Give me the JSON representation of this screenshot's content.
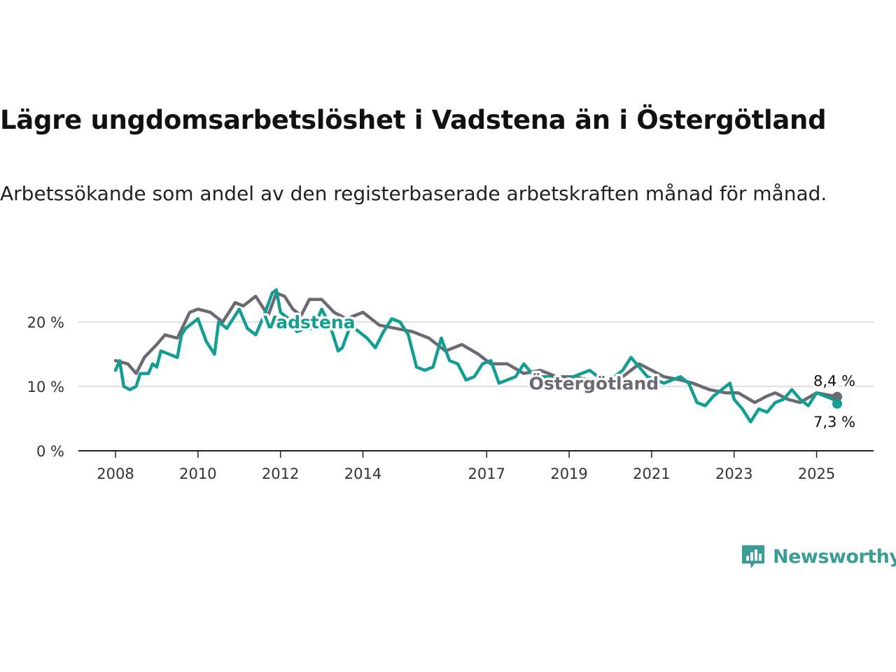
{
  "title": "Lägre ungdomsarbetslöshet i Vadstena än i Östergötland",
  "subtitle": "Arbetssökande som andel av den registerbaserade arbetskraften månad för månad.",
  "brand": {
    "name": "Newsworthy",
    "icon": "chart-bubble-icon",
    "color": "#3a9e94"
  },
  "chart_data": {
    "type": "line",
    "title": "Lägre ungdomsarbetslöshet i Vadstena än i Östergötland",
    "subtitle": "Arbetssökande som andel av den registerbaserade arbetskraften månad för månad.",
    "xlabel": "",
    "ylabel": "",
    "xlim": [
      2008,
      2025.5
    ],
    "ylim": [
      0,
      25
    ],
    "x_ticks": [
      2008,
      2010,
      2012,
      2014,
      2017,
      2019,
      2021,
      2023,
      2025
    ],
    "x_tick_labels": [
      "2008",
      "2010",
      "2012",
      "2014",
      "2017",
      "2019",
      "2021",
      "2023",
      "2025"
    ],
    "y_ticks": [
      0,
      10,
      20
    ],
    "y_tick_labels": [
      "0 %",
      "10 %",
      "20 %"
    ],
    "grid": "horizontal",
    "legend": "inline labels",
    "series": [
      {
        "name": "Östergötland",
        "color": "#6b6a72",
        "label_at": 2019.6,
        "label_y": 9.5,
        "end_label": "8,4 %",
        "x": [
          2008.0,
          2008.3,
          2008.5,
          2008.7,
          2009.0,
          2009.2,
          2009.5,
          2009.8,
          2010.0,
          2010.3,
          2010.6,
          2010.9,
          2011.1,
          2011.4,
          2011.7,
          2011.9,
          2012.1,
          2012.3,
          2012.5,
          2012.7,
          2013.0,
          2013.3,
          2013.6,
          2014.0,
          2014.4,
          2014.8,
          2015.2,
          2015.6,
          2016.0,
          2016.4,
          2016.8,
          2017.1,
          2017.5,
          2017.9,
          2018.3,
          2018.7,
          2019.1,
          2019.5,
          2019.9,
          2020.3,
          2020.7,
          2021.0,
          2021.3,
          2021.7,
          2022.0,
          2022.4,
          2022.8,
          2023.1,
          2023.5,
          2023.8,
          2024.0,
          2024.3,
          2024.6,
          2025.0,
          2025.5
        ],
        "values": [
          14.0,
          13.5,
          12.0,
          14.5,
          16.5,
          18.0,
          17.5,
          21.5,
          22.0,
          21.5,
          20.0,
          23.0,
          22.5,
          24.0,
          21.0,
          24.5,
          24.0,
          22.0,
          21.0,
          23.5,
          23.5,
          21.5,
          20.5,
          21.5,
          19.5,
          19.0,
          18.5,
          17.5,
          15.5,
          16.5,
          15.0,
          13.5,
          13.5,
          12.0,
          12.5,
          11.5,
          11.5,
          11.0,
          11.0,
          11.5,
          13.5,
          12.5,
          11.5,
          11.0,
          10.5,
          9.5,
          9.0,
          9.0,
          7.5,
          8.5,
          9.0,
          8.0,
          7.5,
          9.0,
          8.4
        ]
      },
      {
        "name": "Vadstena",
        "color": "#139e93",
        "label_at": 2012.7,
        "label_y": 19.0,
        "end_label": "7,3 %",
        "x": [
          2008.0,
          2008.1,
          2008.2,
          2008.35,
          2008.5,
          2008.6,
          2008.8,
          2008.9,
          2009.0,
          2009.1,
          2009.3,
          2009.5,
          2009.6,
          2009.7,
          2009.8,
          2009.9,
          2010.0,
          2010.2,
          2010.4,
          2010.5,
          2010.7,
          2010.85,
          2011.0,
          2011.2,
          2011.4,
          2011.6,
          2011.8,
          2011.9,
          2012.0,
          2012.2,
          2012.4,
          2012.6,
          2012.8,
          2013.0,
          2013.2,
          2013.4,
          2013.5,
          2013.7,
          2013.9,
          2014.1,
          2014.3,
          2014.5,
          2014.7,
          2014.9,
          2015.1,
          2015.3,
          2015.5,
          2015.7,
          2015.9,
          2016.1,
          2016.3,
          2016.5,
          2016.7,
          2016.9,
          2017.1,
          2017.3,
          2017.5,
          2017.7,
          2017.9,
          2018.1,
          2018.3,
          2018.5,
          2018.7,
          2018.9,
          2019.1,
          2019.3,
          2019.5,
          2019.7,
          2019.9,
          2020.1,
          2020.3,
          2020.5,
          2020.7,
          2020.9,
          2021.1,
          2021.3,
          2021.5,
          2021.7,
          2021.9,
          2022.1,
          2022.3,
          2022.5,
          2022.7,
          2022.9,
          2023.0,
          2023.2,
          2023.4,
          2023.6,
          2023.8,
          2024.0,
          2024.2,
          2024.4,
          2024.6,
          2024.8,
          2025.0,
          2025.2,
          2025.4,
          2025.5
        ],
        "values": [
          12.5,
          14.0,
          10.0,
          9.5,
          10.0,
          12.0,
          12.0,
          13.5,
          13.0,
          15.5,
          15.0,
          14.5,
          18.0,
          19.0,
          19.5,
          20.0,
          20.5,
          17.0,
          15.0,
          20.0,
          19.0,
          20.5,
          22.0,
          19.0,
          18.0,
          21.0,
          24.5,
          25.0,
          21.5,
          20.5,
          18.5,
          19.0,
          19.0,
          22.0,
          19.5,
          15.5,
          16.0,
          19.5,
          18.5,
          17.5,
          16.0,
          18.5,
          20.5,
          20.0,
          18.0,
          13.0,
          12.5,
          13.0,
          17.5,
          14.0,
          13.5,
          11.0,
          11.5,
          13.5,
          14.0,
          10.5,
          11.0,
          11.5,
          13.5,
          12.0,
          11.5,
          11.5,
          11.0,
          11.0,
          11.5,
          12.0,
          12.5,
          11.5,
          11.0,
          11.5,
          12.5,
          14.5,
          13.0,
          11.5,
          11.0,
          10.5,
          11.0,
          11.5,
          10.5,
          7.5,
          7.0,
          8.5,
          9.5,
          10.5,
          8.0,
          6.5,
          4.5,
          6.5,
          6.0,
          7.5,
          8.0,
          9.5,
          8.0,
          7.0,
          9.0,
          8.5,
          8.0,
          7.3
        ]
      }
    ]
  }
}
